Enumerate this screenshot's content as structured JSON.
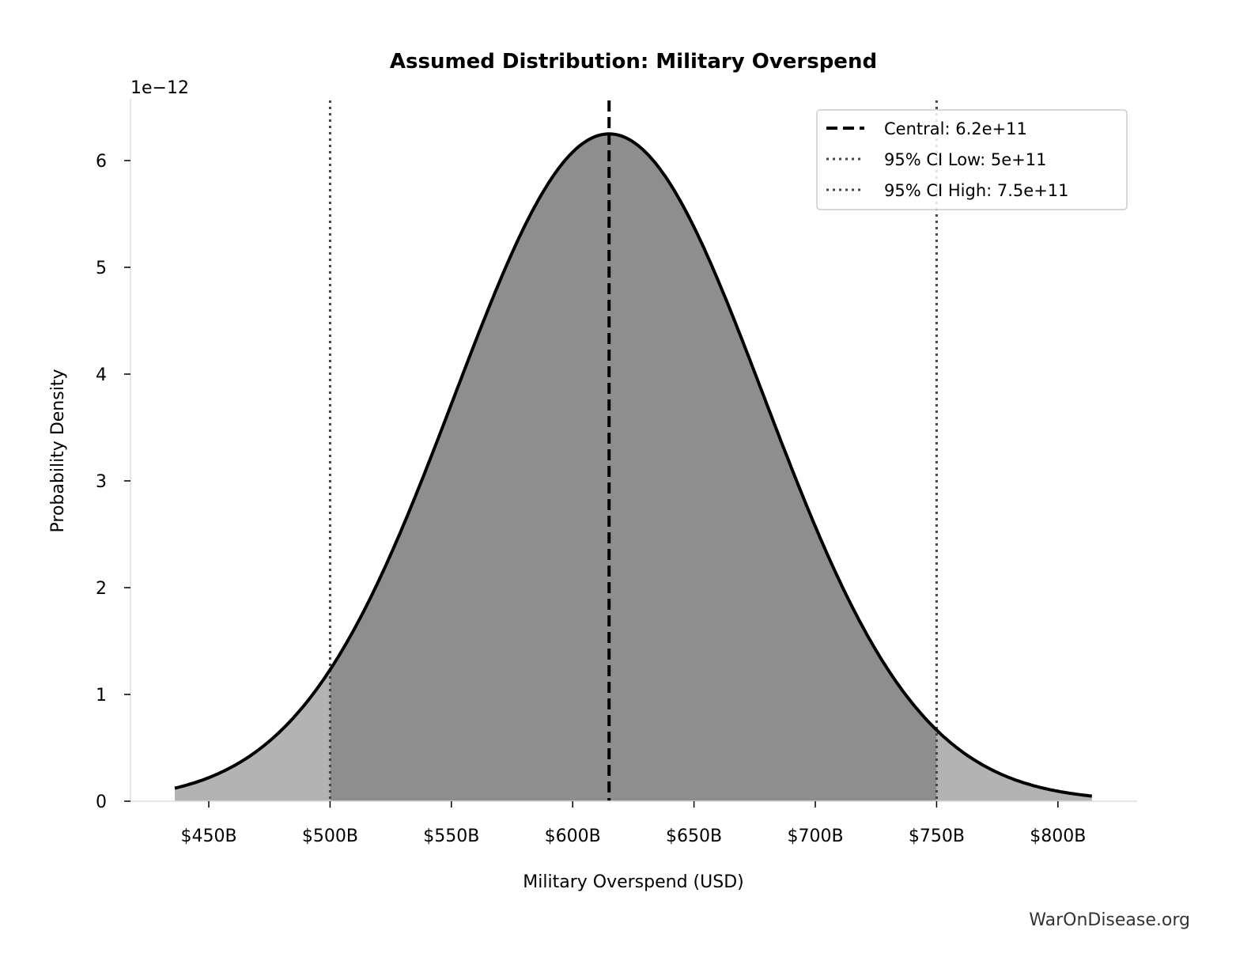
{
  "chart_data": {
    "type": "area",
    "title": "Assumed Distribution: Military Overspend",
    "xlabel": "Military Overspend (USD)",
    "ylabel": "Probability Density",
    "y_offset_label": "1e−12",
    "xlim_billions": [
      415,
      830
    ],
    "ylim": [
      0,
      6.55
    ],
    "x_ticks": [
      450,
      500,
      550,
      600,
      650,
      700,
      750,
      800
    ],
    "x_tick_labels": [
      "$450B",
      "$500B",
      "$550B",
      "$600B",
      "$650B",
      "$700B",
      "$750B",
      "$800B"
    ],
    "y_ticks": [
      0,
      1,
      2,
      3,
      4,
      5,
      6
    ],
    "y_tick_labels": [
      "0",
      "1",
      "2",
      "3",
      "4",
      "5",
      "6"
    ],
    "grid": false,
    "distribution": {
      "shape": "normal",
      "mean_billions": 615,
      "sd_billions": 63.8,
      "x_range_billions": [
        436,
        814
      ],
      "peak_density_e12": 6.25
    },
    "reference_lines": [
      {
        "label": "Central: 6.2e+11",
        "x_billions": 615,
        "style": "dashed",
        "color": "#000000"
      },
      {
        "label": "95% CI Low: 5e+11",
        "x_billions": 500,
        "style": "dotted",
        "color": "#444444"
      },
      {
        "label": "95% CI High: 7.5e+11",
        "x_billions": 750,
        "style": "dotted",
        "color": "#444444"
      }
    ],
    "legend_placement": "top-right",
    "colors": {
      "ci_fill": "#8e8e8e",
      "tail_fill": "#b3b3b3",
      "curve": "#000000"
    }
  },
  "watermark": "WarOnDisease.org"
}
